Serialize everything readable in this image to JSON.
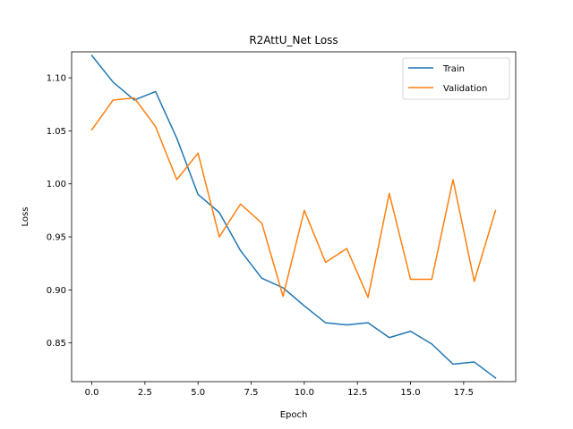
{
  "chart_data": {
    "type": "line",
    "title": "R2AttU_Net Loss",
    "xlabel": "Epoch",
    "ylabel": "Loss",
    "x": [
      0,
      1,
      2,
      3,
      4,
      5,
      6,
      7,
      8,
      9,
      10,
      11,
      12,
      13,
      14,
      15,
      16,
      17,
      18,
      19
    ],
    "xlim": [
      -0.95,
      19.95
    ],
    "ylim": [
      0.8135,
      1.1245
    ],
    "xticks": [
      0,
      2.5,
      5,
      7.5,
      10,
      12.5,
      15,
      17.5
    ],
    "xtick_labels": [
      "0.0",
      "2.5",
      "5.0",
      "7.5",
      "10.0",
      "12.5",
      "15.0",
      "17.5"
    ],
    "yticks": [
      0.85,
      0.9,
      0.95,
      1.0,
      1.05,
      1.1
    ],
    "ytick_labels": [
      "0.85",
      "0.90",
      "0.95",
      "1.00",
      "1.05",
      "1.10"
    ],
    "grid": false,
    "legend_position": "top-right",
    "series": [
      {
        "name": "Train",
        "color": "#1f77b4",
        "values": [
          1.121,
          1.096,
          1.079,
          1.087,
          1.043,
          0.99,
          0.973,
          0.937,
          0.911,
          0.902,
          0.885,
          0.869,
          0.867,
          0.869,
          0.855,
          0.861,
          0.849,
          0.83,
          0.832,
          0.817
        ]
      },
      {
        "name": "Validation",
        "color": "#ff7f0e",
        "values": [
          1.051,
          1.079,
          1.081,
          1.054,
          1.004,
          1.029,
          0.95,
          0.981,
          0.963,
          0.894,
          0.975,
          0.926,
          0.939,
          0.893,
          0.991,
          0.91,
          0.91,
          1.004,
          0.908,
          0.975
        ]
      }
    ]
  }
}
